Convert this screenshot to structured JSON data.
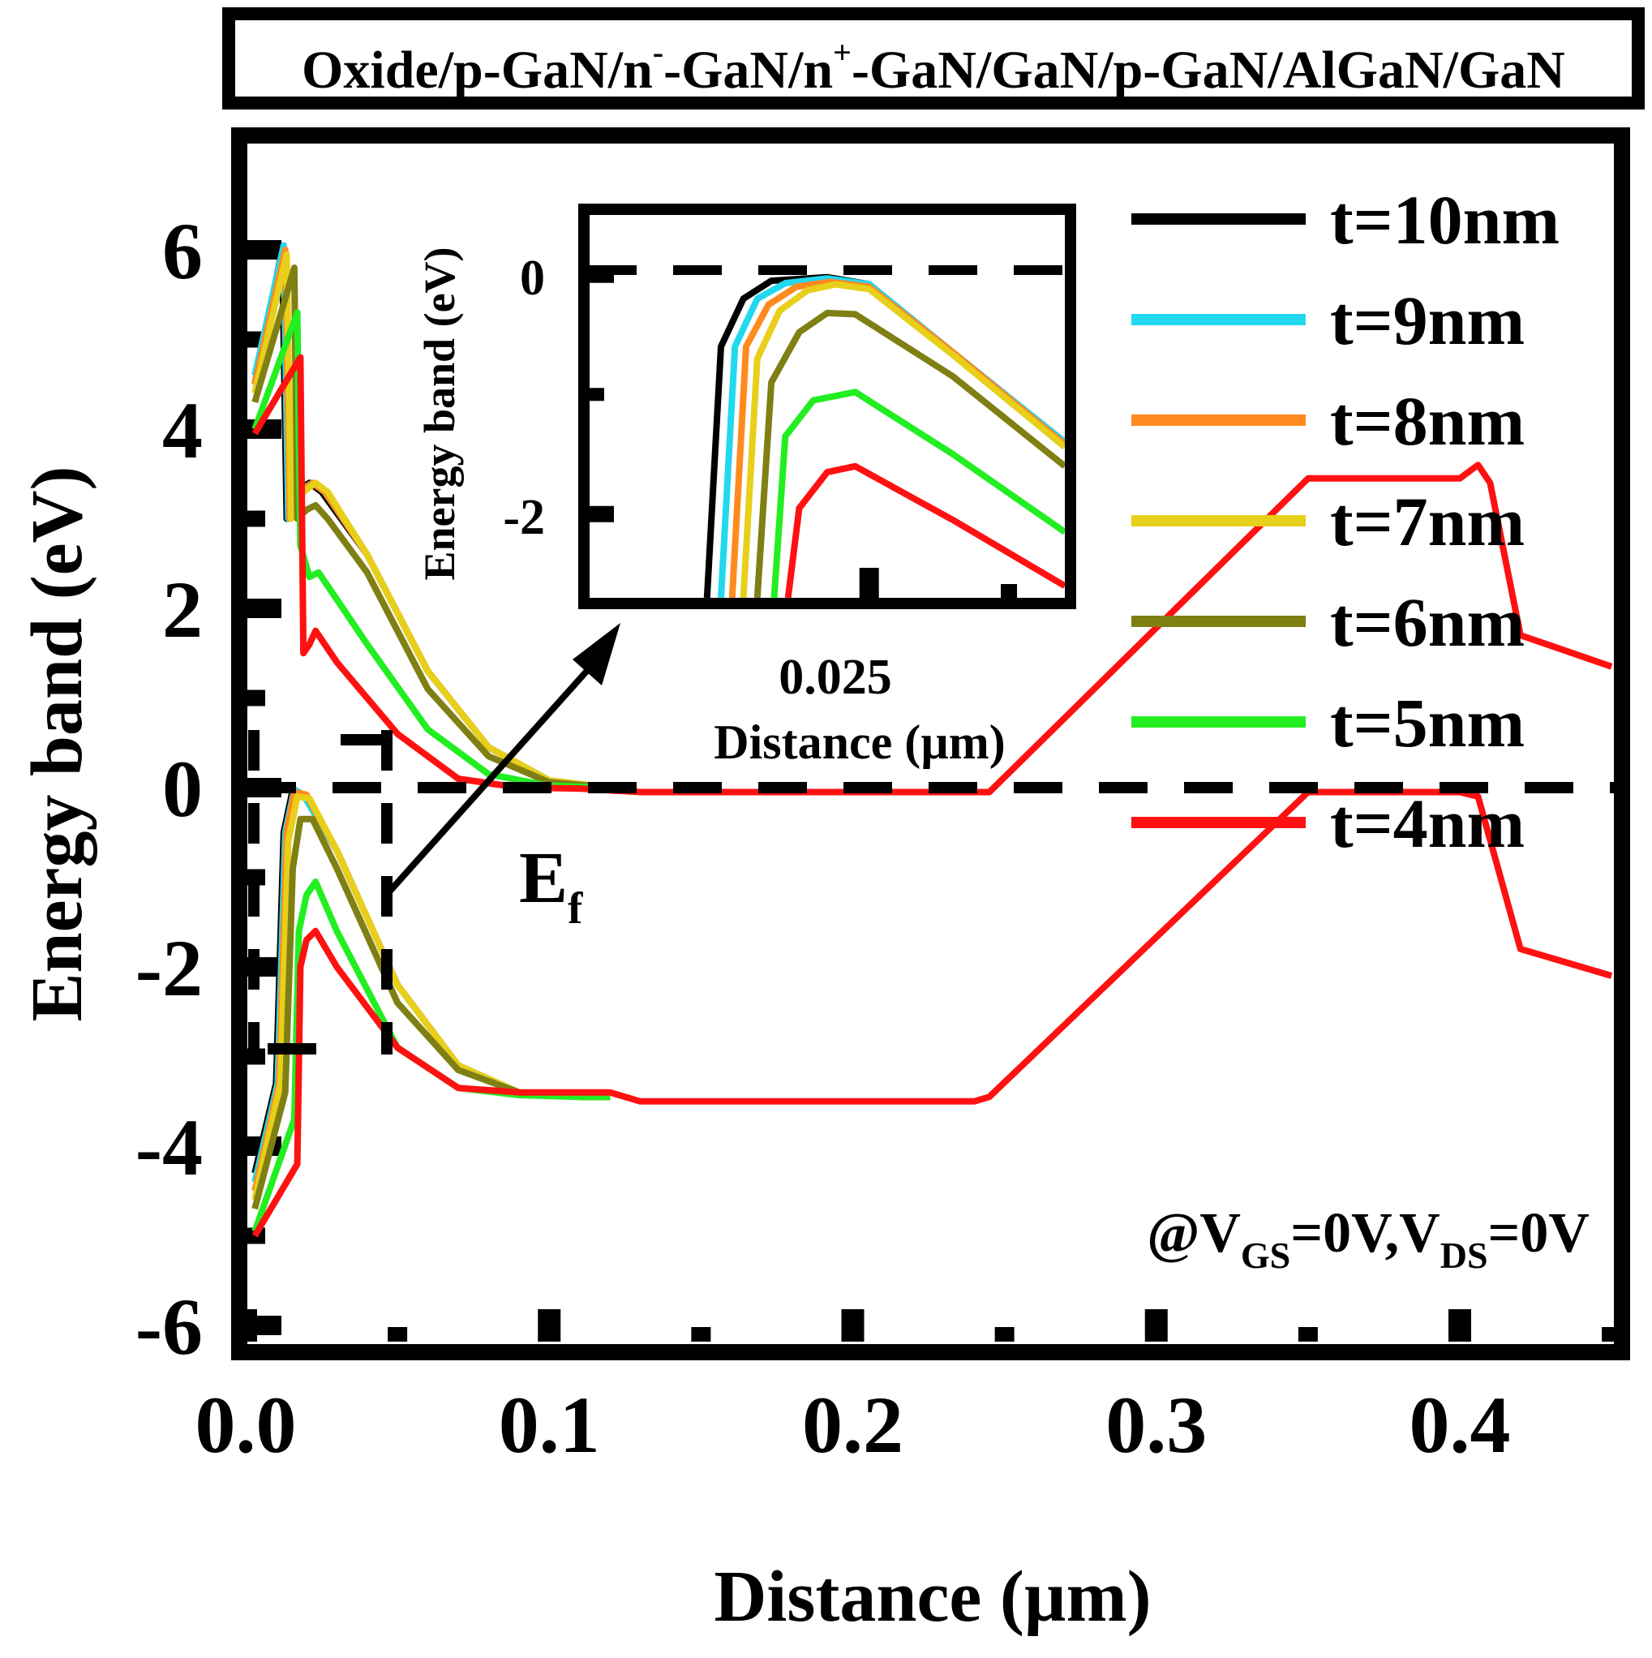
{
  "chart_data": {
    "type": "line",
    "title": "Oxide/p-GaN/n⁻-GaN/n⁺-GaN/GaN/p-GaN/AlGaN/GaN",
    "xlabel": "Distance (µm)",
    "ylabel": "Energy band (eV)",
    "xlim": [
      0.0,
      0.45
    ],
    "ylim": [
      -6,
      7
    ],
    "xticks": [
      "0.0",
      "0.1",
      "0.2",
      "0.3",
      "0.4"
    ],
    "yticks": [
      "-6",
      "-4",
      "-2",
      "0",
      "2",
      "4",
      "6"
    ],
    "fermi_label": "E",
    "fermi_sub": "f",
    "condition": {
      "prefix": "@V",
      "sub1": "GS",
      "mid": "=0V,V",
      "sub2": "DS",
      "suffix": "=0V"
    },
    "series": [
      {
        "name": "t=10nm",
        "color": "#000000",
        "cb": [
          [
            0.003,
            4.5
          ],
          [
            0.012,
            6.0
          ],
          [
            0.0135,
            3.0
          ],
          [
            0.016,
            3.3
          ],
          [
            0.021,
            3.4
          ],
          [
            0.025,
            3.3
          ],
          [
            0.04,
            2.6
          ],
          [
            0.06,
            1.3
          ],
          [
            0.08,
            0.45
          ],
          [
            0.1,
            0.08
          ],
          [
            0.12,
            0.0
          ]
        ],
        "vb": [
          [
            0.003,
            -4.3
          ],
          [
            0.01,
            -3.3
          ],
          [
            0.0125,
            -0.5
          ],
          [
            0.0155,
            -0.02
          ],
          [
            0.019,
            -0.08
          ],
          [
            0.03,
            -0.7
          ],
          [
            0.05,
            -2.2
          ],
          [
            0.07,
            -3.1
          ],
          [
            0.09,
            -3.4
          ],
          [
            0.11,
            -3.45
          ],
          [
            0.12,
            -3.45
          ]
        ]
      },
      {
        "name": "t=9nm",
        "color": "#22d8ee",
        "cb": [
          [
            0.003,
            4.6
          ],
          [
            0.0125,
            6.05
          ],
          [
            0.014,
            3.0
          ],
          [
            0.017,
            3.3
          ],
          [
            0.022,
            3.4
          ],
          [
            0.026,
            3.3
          ],
          [
            0.04,
            2.6
          ],
          [
            0.06,
            1.3
          ],
          [
            0.08,
            0.45
          ],
          [
            0.1,
            0.08
          ],
          [
            0.12,
            0.0
          ]
        ],
        "vb": [
          [
            0.003,
            -4.4
          ],
          [
            0.0105,
            -3.3
          ],
          [
            0.013,
            -0.5
          ],
          [
            0.016,
            -0.02
          ],
          [
            0.019,
            -0.08
          ],
          [
            0.03,
            -0.7
          ],
          [
            0.05,
            -2.2
          ],
          [
            0.07,
            -3.1
          ],
          [
            0.09,
            -3.4
          ],
          [
            0.11,
            -3.45
          ],
          [
            0.12,
            -3.45
          ]
        ]
      },
      {
        "name": "t=8nm",
        "color": "#ff8a1e",
        "cb": [
          [
            0.003,
            4.5
          ],
          [
            0.013,
            6.0
          ],
          [
            0.0145,
            3.0
          ],
          [
            0.018,
            3.3
          ],
          [
            0.022,
            3.4
          ],
          [
            0.026,
            3.3
          ],
          [
            0.04,
            2.6
          ],
          [
            0.06,
            1.3
          ],
          [
            0.08,
            0.45
          ],
          [
            0.1,
            0.08
          ],
          [
            0.12,
            0.0
          ]
        ],
        "vb": [
          [
            0.003,
            -4.5
          ],
          [
            0.011,
            -3.3
          ],
          [
            0.0135,
            -0.5
          ],
          [
            0.016,
            -0.05
          ],
          [
            0.02,
            -0.08
          ],
          [
            0.03,
            -0.7
          ],
          [
            0.05,
            -2.2
          ],
          [
            0.07,
            -3.1
          ],
          [
            0.09,
            -3.4
          ],
          [
            0.11,
            -3.45
          ],
          [
            0.12,
            -3.45
          ]
        ]
      },
      {
        "name": "t=7nm",
        "color": "#e8cf1a",
        "cb": [
          [
            0.003,
            4.4
          ],
          [
            0.0135,
            5.95
          ],
          [
            0.015,
            3.0
          ],
          [
            0.019,
            3.3
          ],
          [
            0.023,
            3.4
          ],
          [
            0.027,
            3.3
          ],
          [
            0.04,
            2.6
          ],
          [
            0.06,
            1.3
          ],
          [
            0.08,
            0.45
          ],
          [
            0.1,
            0.08
          ],
          [
            0.12,
            0.0
          ]
        ],
        "vb": [
          [
            0.003,
            -4.6
          ],
          [
            0.0115,
            -3.3
          ],
          [
            0.014,
            -0.6
          ],
          [
            0.017,
            -0.1
          ],
          [
            0.021,
            -0.12
          ],
          [
            0.03,
            -0.7
          ],
          [
            0.05,
            -2.2
          ],
          [
            0.07,
            -3.1
          ],
          [
            0.09,
            -3.4
          ],
          [
            0.11,
            -3.45
          ],
          [
            0.12,
            -3.45
          ]
        ]
      },
      {
        "name": "t=6nm",
        "color": "#7f7f14",
        "cb": [
          [
            0.003,
            4.3
          ],
          [
            0.016,
            5.8
          ],
          [
            0.017,
            3.0
          ],
          [
            0.02,
            3.1
          ],
          [
            0.023,
            3.15
          ],
          [
            0.027,
            3.0
          ],
          [
            0.04,
            2.4
          ],
          [
            0.06,
            1.1
          ],
          [
            0.08,
            0.35
          ],
          [
            0.1,
            0.06
          ],
          [
            0.12,
            0.0
          ]
        ],
        "vb": [
          [
            0.003,
            -4.7
          ],
          [
            0.013,
            -3.4
          ],
          [
            0.0155,
            -0.9
          ],
          [
            0.018,
            -0.35
          ],
          [
            0.022,
            -0.35
          ],
          [
            0.03,
            -0.9
          ],
          [
            0.05,
            -2.4
          ],
          [
            0.07,
            -3.15
          ],
          [
            0.09,
            -3.4
          ],
          [
            0.11,
            -3.45
          ],
          [
            0.12,
            -3.45
          ]
        ]
      },
      {
        "name": "t=5nm",
        "color": "#22ee22",
        "cb": [
          [
            0.003,
            4.0
          ],
          [
            0.017,
            5.3
          ],
          [
            0.018,
            2.7
          ],
          [
            0.021,
            2.35
          ],
          [
            0.024,
            2.4
          ],
          [
            0.028,
            2.2
          ],
          [
            0.04,
            1.6
          ],
          [
            0.06,
            0.65
          ],
          [
            0.08,
            0.15
          ],
          [
            0.1,
            0.02
          ],
          [
            0.12,
            0.0
          ]
        ],
        "vb": [
          [
            0.003,
            -4.95
          ],
          [
            0.016,
            -3.7
          ],
          [
            0.0175,
            -1.6
          ],
          [
            0.02,
            -1.2
          ],
          [
            0.023,
            -1.05
          ],
          [
            0.03,
            -1.6
          ],
          [
            0.05,
            -2.9
          ],
          [
            0.07,
            -3.35
          ],
          [
            0.09,
            -3.43
          ],
          [
            0.11,
            -3.45
          ],
          [
            0.12,
            -3.45
          ]
        ]
      },
      {
        "name": "t=4nm",
        "color": "#ff1111",
        "cb": [
          [
            0.003,
            3.95
          ],
          [
            0.018,
            4.8
          ],
          [
            0.019,
            1.5
          ],
          [
            0.021,
            1.6
          ],
          [
            0.023,
            1.75
          ],
          [
            0.03,
            1.4
          ],
          [
            0.05,
            0.6
          ],
          [
            0.07,
            0.1
          ],
          [
            0.09,
            0.0
          ],
          [
            0.11,
            -0.01
          ],
          [
            0.13,
            -0.05
          ],
          [
            0.2,
            -0.05
          ],
          [
            0.245,
            -0.05
          ],
          [
            0.35,
            3.45
          ],
          [
            0.4,
            3.45
          ],
          [
            0.406,
            3.6
          ],
          [
            0.41,
            3.4
          ],
          [
            0.42,
            1.7
          ],
          [
            0.45,
            1.35
          ]
        ],
        "vb": [
          [
            0.003,
            -5.0
          ],
          [
            0.017,
            -4.2
          ],
          [
            0.018,
            -2.0
          ],
          [
            0.02,
            -1.7
          ],
          [
            0.023,
            -1.6
          ],
          [
            0.03,
            -2.0
          ],
          [
            0.05,
            -2.9
          ],
          [
            0.07,
            -3.35
          ],
          [
            0.09,
            -3.4
          ],
          [
            0.12,
            -3.4
          ],
          [
            0.13,
            -3.5
          ],
          [
            0.2,
            -3.5
          ],
          [
            0.24,
            -3.5
          ],
          [
            0.245,
            -3.45
          ],
          [
            0.35,
            -0.05
          ],
          [
            0.4,
            -0.05
          ],
          [
            0.406,
            -0.1
          ],
          [
            0.42,
            -1.8
          ],
          [
            0.45,
            -2.1
          ]
        ]
      }
    ],
    "inset": {
      "xlabel": "Distance (µm)",
      "ylabel": "Energy band (eV)",
      "xtick": "0.025",
      "yticks": [
        "0",
        "-2"
      ],
      "xlim": [
        0.015,
        0.032
      ],
      "ylim": [
        -2.7,
        0.5
      ],
      "curves": [
        {
          "color": "#000000",
          "pts": [
            [
              0.0192,
              -2.7
            ],
            [
              0.0197,
              -0.6
            ],
            [
              0.0205,
              -0.2
            ],
            [
              0.0215,
              -0.05
            ],
            [
              0.0235,
              -0.02
            ],
            [
              0.025,
              -0.08
            ],
            [
              0.028,
              -0.65
            ],
            [
              0.032,
              -1.4
            ]
          ]
        },
        {
          "color": "#22d8ee",
          "pts": [
            [
              0.0197,
              -2.7
            ],
            [
              0.0202,
              -0.6
            ],
            [
              0.021,
              -0.2
            ],
            [
              0.022,
              -0.07
            ],
            [
              0.0235,
              -0.03
            ],
            [
              0.025,
              -0.08
            ],
            [
              0.028,
              -0.65
            ],
            [
              0.032,
              -1.4
            ]
          ]
        },
        {
          "color": "#ff8a1e",
          "pts": [
            [
              0.0201,
              -2.7
            ],
            [
              0.0206,
              -0.6
            ],
            [
              0.0214,
              -0.25
            ],
            [
              0.0224,
              -0.1
            ],
            [
              0.0236,
              -0.06
            ],
            [
              0.025,
              -0.1
            ],
            [
              0.028,
              -0.65
            ],
            [
              0.032,
              -1.42
            ]
          ]
        },
        {
          "color": "#e8cf1a",
          "pts": [
            [
              0.0205,
              -2.7
            ],
            [
              0.021,
              -0.7
            ],
            [
              0.0218,
              -0.3
            ],
            [
              0.0228,
              -0.13
            ],
            [
              0.0238,
              -0.08
            ],
            [
              0.025,
              -0.12
            ],
            [
              0.028,
              -0.67
            ],
            [
              0.032,
              -1.44
            ]
          ]
        },
        {
          "color": "#7f7f14",
          "pts": [
            [
              0.021,
              -2.7
            ],
            [
              0.0215,
              -0.9
            ],
            [
              0.0225,
              -0.48
            ],
            [
              0.0235,
              -0.32
            ],
            [
              0.0245,
              -0.33
            ],
            [
              0.028,
              -0.85
            ],
            [
              0.032,
              -1.6
            ]
          ]
        },
        {
          "color": "#22ee22",
          "pts": [
            [
              0.0216,
              -2.7
            ],
            [
              0.022,
              -1.35
            ],
            [
              0.023,
              -1.05
            ],
            [
              0.0245,
              -0.98
            ],
            [
              0.028,
              -1.5
            ],
            [
              0.032,
              -2.15
            ]
          ]
        },
        {
          "color": "#ff1111",
          "pts": [
            [
              0.0221,
              -2.7
            ],
            [
              0.0225,
              -1.95
            ],
            [
              0.0235,
              -1.65
            ],
            [
              0.0245,
              -1.6
            ],
            [
              0.028,
              -2.05
            ],
            [
              0.032,
              -2.6
            ]
          ]
        }
      ]
    }
  }
}
